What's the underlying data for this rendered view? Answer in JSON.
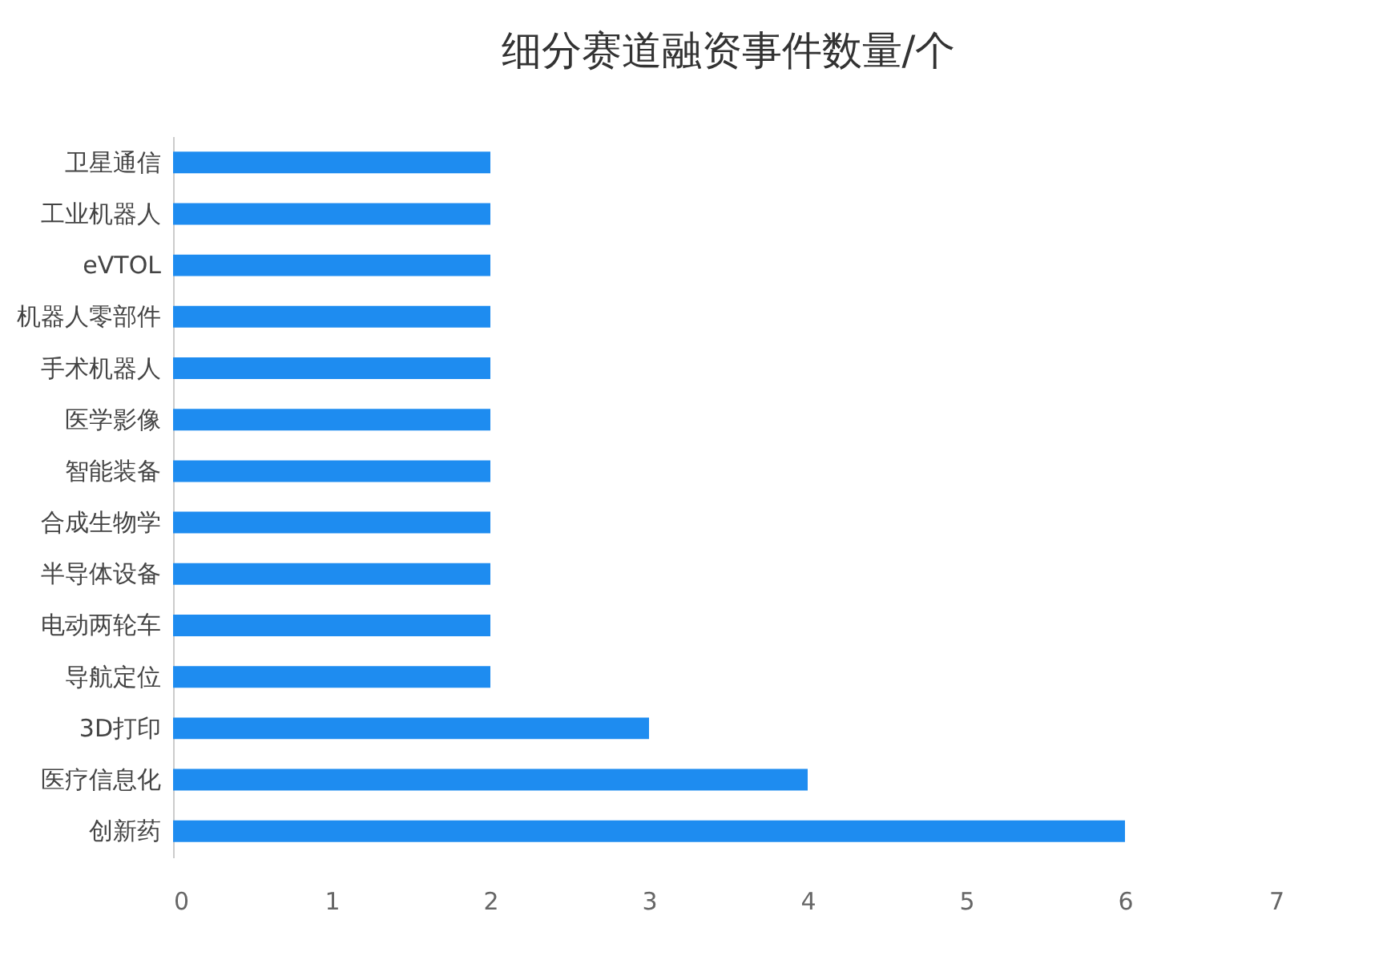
{
  "chart_data": {
    "type": "bar",
    "orientation": "horizontal",
    "title": "细分赛道融资事件数量/个",
    "categories": [
      "卫星通信",
      "工业机器人",
      "eVTOL",
      "机器人零部件",
      "手术机器人",
      "医学影像",
      "智能装备",
      "合成生物学",
      "半导体设备",
      "电动两轮车",
      "导航定位",
      "3D打印",
      "医疗信息化",
      "创新药"
    ],
    "values": [
      2,
      2,
      2,
      2,
      2,
      2,
      2,
      2,
      2,
      2,
      2,
      3,
      4,
      6
    ],
    "color": "#1e8cf0",
    "xlim": [
      0,
      7
    ],
    "xticks": [
      0,
      1,
      2,
      3,
      4,
      5,
      6,
      7
    ],
    "grid": false
  }
}
